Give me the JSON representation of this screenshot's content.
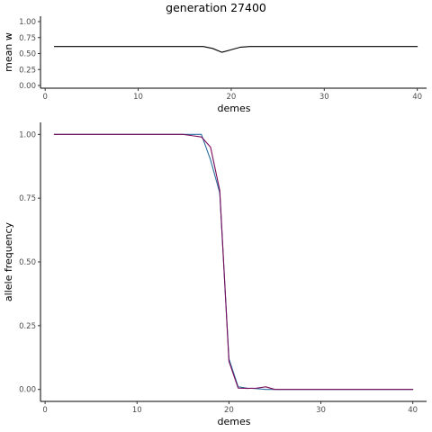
{
  "chart_data": [
    {
      "type": "line",
      "title": "generation 27400",
      "xlabel": "demes",
      "ylabel": "mean w",
      "xlim": [
        -0.5,
        41
      ],
      "ylim": [
        0,
        1
      ],
      "xticks": [
        0,
        10,
        20,
        30,
        40
      ],
      "xtick_labels": [
        "0",
        "10",
        "20",
        "30",
        "40"
      ],
      "yticks": [
        0,
        0.25,
        0.5,
        0.75,
        1
      ],
      "ytick_labels": [
        "0.00",
        "0.25",
        "0.50",
        "0.75",
        "1.00"
      ],
      "grid": false,
      "series": [
        {
          "color": "#000000",
          "x": [
            1,
            2,
            3,
            4,
            5,
            6,
            7,
            8,
            9,
            10,
            11,
            12,
            13,
            14,
            15,
            16,
            17,
            18,
            19,
            20,
            21,
            22,
            23,
            24,
            25,
            26,
            27,
            28,
            29,
            30,
            31,
            32,
            33,
            34,
            35,
            36,
            37,
            38,
            39,
            40
          ],
          "values": [
            0.61,
            0.61,
            0.61,
            0.61,
            0.61,
            0.61,
            0.61,
            0.61,
            0.61,
            0.61,
            0.61,
            0.61,
            0.61,
            0.61,
            0.61,
            0.61,
            0.61,
            0.58,
            0.52,
            0.56,
            0.6,
            0.61,
            0.61,
            0.61,
            0.61,
            0.61,
            0.61,
            0.61,
            0.61,
            0.61,
            0.61,
            0.61,
            0.61,
            0.61,
            0.61,
            0.61,
            0.61,
            0.61,
            0.61,
            0.61
          ]
        }
      ]
    },
    {
      "type": "line",
      "title": "",
      "xlabel": "demes",
      "ylabel": "allele frequency",
      "xlim": [
        -0.5,
        41.5
      ],
      "ylim": [
        -0.04,
        1.04
      ],
      "xticks": [
        0,
        10,
        20,
        30,
        40
      ],
      "xtick_labels": [
        "0",
        "10",
        "20",
        "30",
        "40"
      ],
      "yticks": [
        0,
        0.25,
        0.5,
        0.75,
        1
      ],
      "ytick_labels": [
        "0.00",
        "0.25",
        "0.50",
        "0.75",
        "1.00"
      ],
      "grid": false,
      "series": [
        {
          "color": "#2c6e9e",
          "x": [
            1,
            2,
            3,
            4,
            5,
            6,
            7,
            8,
            9,
            10,
            11,
            12,
            13,
            14,
            15,
            16,
            17,
            18,
            19,
            20,
            21,
            22,
            23,
            24,
            25,
            26,
            27,
            28,
            29,
            30,
            31,
            32,
            33,
            34,
            35,
            36,
            37,
            38,
            39,
            40
          ],
          "values": [
            1.0,
            1.0,
            1.0,
            1.0,
            1.0,
            1.0,
            1.0,
            1.0,
            1.0,
            1.0,
            1.0,
            1.0,
            1.0,
            1.0,
            1.0,
            1.0,
            1.0,
            0.9,
            0.77,
            0.12,
            0.01,
            0.005,
            0.003,
            0.0,
            0.0,
            0.0,
            0.0,
            0.0,
            0.0,
            0.0,
            0.0,
            0.0,
            0.0,
            0.0,
            0.0,
            0.0,
            0.0,
            0.0,
            0.0,
            0.0
          ]
        },
        {
          "color": "#7a0a5a",
          "x": [
            1,
            2,
            3,
            4,
            5,
            6,
            7,
            8,
            9,
            10,
            11,
            12,
            13,
            14,
            15,
            16,
            17,
            18,
            19,
            20,
            21,
            22,
            23,
            24,
            25,
            26,
            27,
            28,
            29,
            30,
            31,
            32,
            33,
            34,
            35,
            36,
            37,
            38,
            39,
            40
          ],
          "values": [
            1.0,
            1.0,
            1.0,
            1.0,
            1.0,
            1.0,
            1.0,
            1.0,
            1.0,
            1.0,
            1.0,
            1.0,
            1.0,
            1.0,
            1.0,
            0.995,
            0.99,
            0.95,
            0.78,
            0.11,
            0.005,
            0.004,
            0.005,
            0.01,
            0.0,
            0.0,
            0.0,
            0.0,
            0.0,
            0.0,
            0.0,
            0.0,
            0.0,
            0.0,
            0.0,
            0.0,
            0.0,
            0.0,
            0.0,
            0.0
          ]
        }
      ]
    }
  ]
}
